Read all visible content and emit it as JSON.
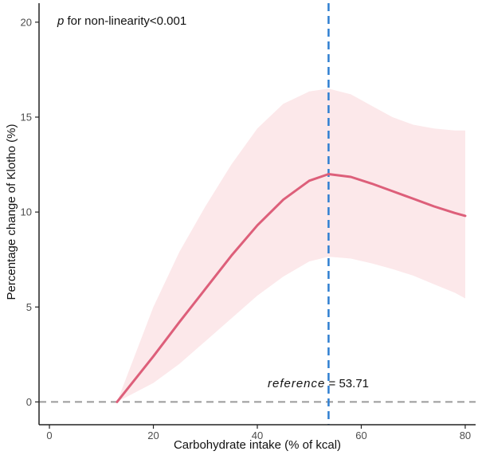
{
  "chart_data": {
    "type": "line",
    "xlabel": "Carbohydrate intake (% of kcal)",
    "ylabel": "Percentage change of Klotho (%)",
    "xlim": [
      -2,
      82
    ],
    "ylim": [
      -1.2,
      21
    ],
    "xticks": [
      0,
      20,
      40,
      60,
      80
    ],
    "yticks": [
      0,
      5,
      10,
      15,
      20
    ],
    "grid": false,
    "series": [
      {
        "x": [
          13.0,
          20,
          25,
          30,
          35,
          40,
          45,
          50,
          53.71,
          58,
          62,
          66,
          70,
          74,
          78,
          80
        ],
        "y": [
          0.0,
          2.4,
          4.2,
          5.95,
          7.7,
          9.3,
          10.65,
          11.65,
          12.0,
          11.85,
          11.5,
          11.1,
          10.7,
          10.3,
          9.95,
          9.8
        ],
        "lower": [
          0.0,
          1.0,
          2.0,
          3.2,
          4.4,
          5.6,
          6.6,
          7.4,
          7.65,
          7.55,
          7.3,
          7.0,
          6.65,
          6.2,
          5.75,
          5.45
        ],
        "upper": [
          0.0,
          5.0,
          7.9,
          10.3,
          12.5,
          14.4,
          15.7,
          16.35,
          16.5,
          16.2,
          15.6,
          15.0,
          14.6,
          14.4,
          14.3,
          14.3
        ]
      }
    ],
    "reference_x": 53.71,
    "reference_y": 0,
    "colors": {
      "line": "#dd5f7a",
      "band": "#fce8ea",
      "reference_line": "#2f7fd1",
      "zero_line": "#9b9b9b",
      "axis": "#222222"
    },
    "annotations": {
      "nonlinearity_p": "p",
      "nonlinearity_text": " for non-linearity<0.001",
      "reference_word": "reference",
      "reference_value": " = 53.71"
    }
  }
}
